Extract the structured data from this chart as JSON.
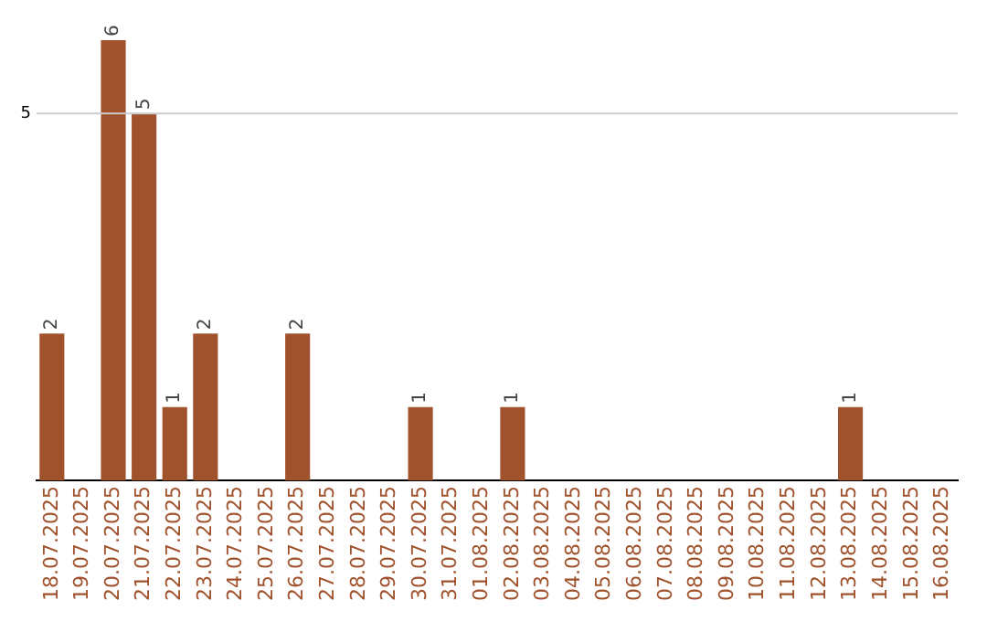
{
  "chart_data": {
    "type": "bar",
    "categories": [
      "18.07.2025",
      "19.07.2025",
      "20.07.2025",
      "21.07.2025",
      "22.07.2025",
      "23.07.2025",
      "24.07.2025",
      "25.07.2025",
      "26.07.2025",
      "27.07.2025",
      "28.07.2025",
      "29.07.2025",
      "30.07.2025",
      "31.07.2025",
      "01.08.2025",
      "02.08.2025",
      "03.08.2025",
      "04.08.2025",
      "05.08.2025",
      "06.08.2025",
      "07.08.2025",
      "08.08.2025",
      "09.08.2025",
      "10.08.2025",
      "11.08.2025",
      "12.08.2025",
      "13.08.2025",
      "14.08.2025",
      "15.08.2025",
      "16.08.2025"
    ],
    "values": [
      2,
      0,
      6,
      5,
      1,
      2,
      0,
      0,
      2,
      0,
      0,
      0,
      1,
      0,
      0,
      1,
      0,
      0,
      0,
      0,
      0,
      0,
      0,
      0,
      0,
      0,
      1,
      0,
      0,
      0
    ],
    "value_labels": [
      "2",
      null,
      "6",
      "5",
      "1",
      "2",
      null,
      null,
      "2",
      null,
      null,
      null,
      "1",
      null,
      null,
      "1",
      null,
      null,
      null,
      null,
      null,
      null,
      null,
      null,
      null,
      null,
      "1",
      null,
      null,
      null
    ],
    "color": "#a0522d",
    "ref_lines": [
      {
        "axis": "y",
        "value": 5,
        "label": "5",
        "color": "#cccccc"
      }
    ],
    "legend": false
  }
}
